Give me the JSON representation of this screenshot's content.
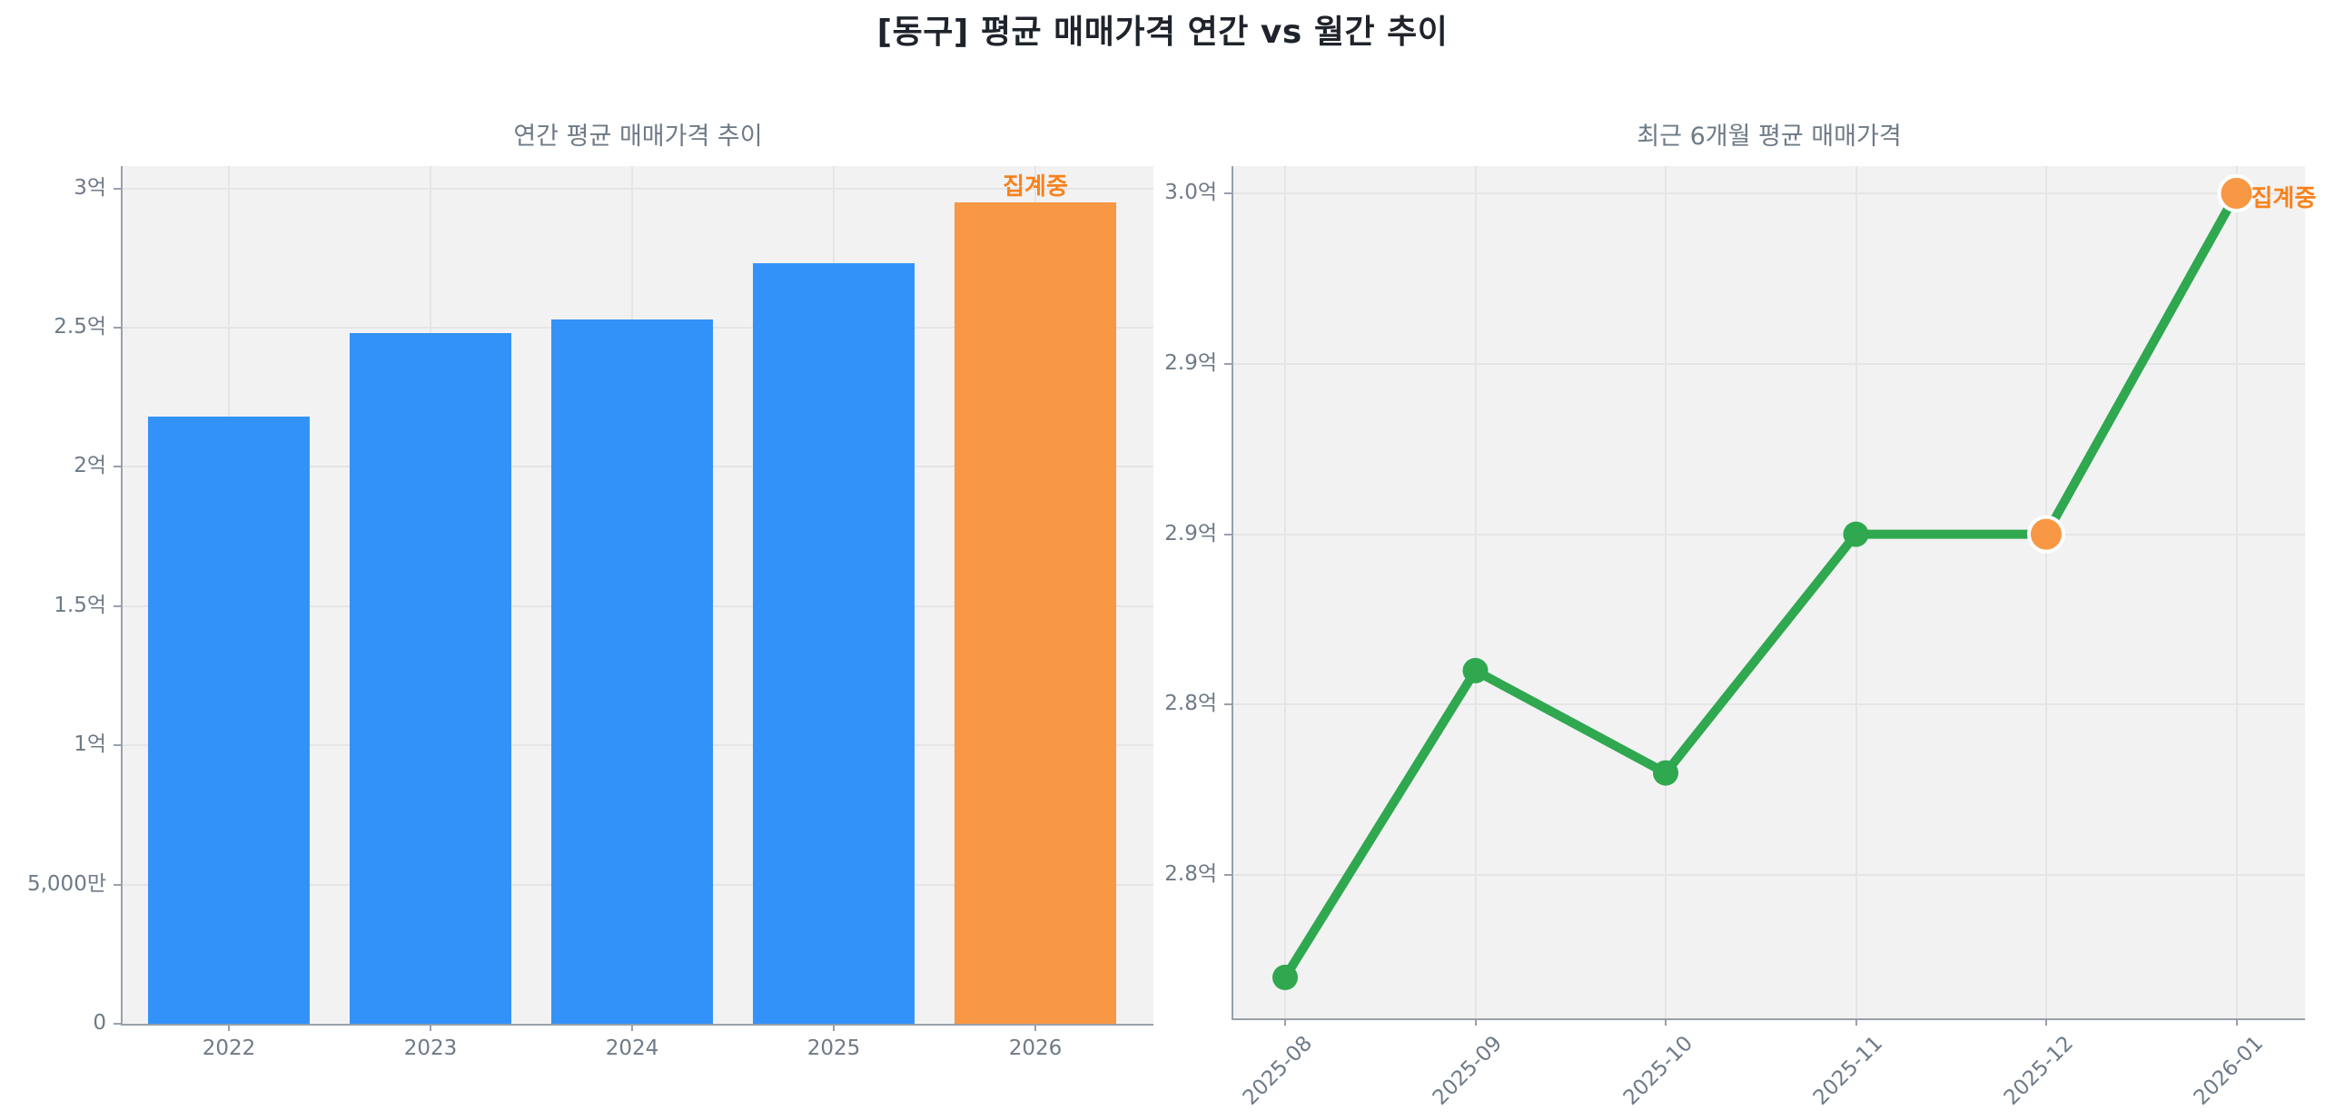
{
  "title": "[동구] 평균 매매가격 연간 vs 월간 추이",
  "colors": {
    "bar_default": "#3392f8",
    "bar_highlight": "#f89744",
    "line": "#2fa84f",
    "point_default": "#2fa84f",
    "point_highlight": "#f89744",
    "point_highlight_ring": "#ffffff",
    "annotation_text": "#f8821c",
    "plot_background": "#f2f2f3",
    "grid": "#e5e5e8",
    "axis": "#98a0aa",
    "tick_text": "#6e7a87",
    "subtitle_text": "#6e7a87",
    "title_text": "#1f232b"
  },
  "chart_data": [
    {
      "type": "bar",
      "title": "연간 평균 매매가격 추이",
      "categories": [
        "2022",
        "2023",
        "2024",
        "2025",
        "2026"
      ],
      "values": [
        2.18,
        2.48,
        2.53,
        2.73,
        2.95
      ],
      "unit": "억",
      "highlight_index": 4,
      "annotation": {
        "text": "집계중",
        "target": "2026"
      },
      "ytick_values": [
        0,
        0.5,
        1.0,
        1.5,
        2.0,
        2.5,
        3.0
      ],
      "ytick_labels": [
        "0",
        "5,000만",
        "1억",
        "1.5억",
        "2억",
        "2.5억",
        "3억"
      ],
      "ylim": [
        0,
        3.08
      ],
      "grid": true,
      "legend": "none"
    },
    {
      "type": "line",
      "title": "최근 6개월 평균 매매가격",
      "x": [
        "2025-08",
        "2025-09",
        "2025-10",
        "2025-11",
        "2025-12",
        "2026-01"
      ],
      "values": [
        2.77,
        2.86,
        2.83,
        2.9,
        2.9,
        3.0
      ],
      "unit": "억",
      "highlight_indices": [
        4,
        5
      ],
      "annotation": {
        "text": "집계중",
        "target": "2026-01"
      },
      "ytick_values": [
        2.8,
        2.85,
        2.9,
        2.95,
        3.0
      ],
      "ytick_labels": [
        "2.8억",
        "2.8억",
        "2.9억",
        "2.9억",
        "3.0억"
      ],
      "ylim": [
        2.758,
        3.008
      ],
      "grid": true,
      "legend": "none"
    }
  ]
}
